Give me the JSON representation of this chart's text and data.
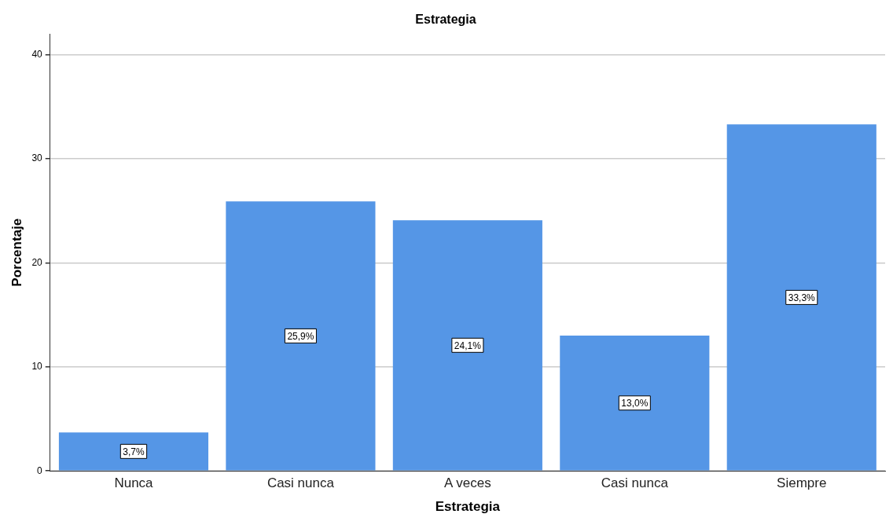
{
  "chart_data": {
    "type": "bar",
    "title": "Estrategia",
    "xlabel": "Estrategia",
    "ylabel": "Porcentaje",
    "categories": [
      "Nunca",
      "Casi nunca",
      "A veces",
      "Casi nunca",
      "Siempre"
    ],
    "values": [
      3.7,
      25.9,
      24.1,
      13.0,
      33.3
    ],
    "value_labels": [
      "3,7%",
      "25,9%",
      "24,1%",
      "13,0%",
      "33,3%"
    ],
    "color": "#5596e6",
    "ylim": [
      0,
      42
    ],
    "yticks": [
      0,
      10,
      20,
      30,
      40
    ],
    "grid": "y",
    "legend": false
  }
}
